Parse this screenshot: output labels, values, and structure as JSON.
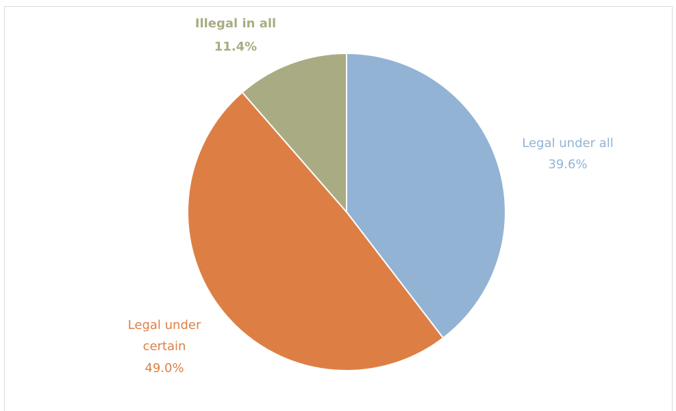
{
  "chart_data": {
    "type": "pie",
    "slices": [
      {
        "label": "Legal under all",
        "value": 39.6,
        "value_label": "39.6%",
        "color": "#93b3d4"
      },
      {
        "label": "Legal under certain",
        "value": 49.0,
        "value_label": "49.0%",
        "color": "#dd7f45"
      },
      {
        "label": "Illegal  in all",
        "value": 11.4,
        "value_label": "11.4%",
        "color": "#a9ac82"
      }
    ],
    "start_angle": "12 o'clock",
    "direction": "clockwise",
    "legend": "none",
    "data_labels": "outside"
  }
}
